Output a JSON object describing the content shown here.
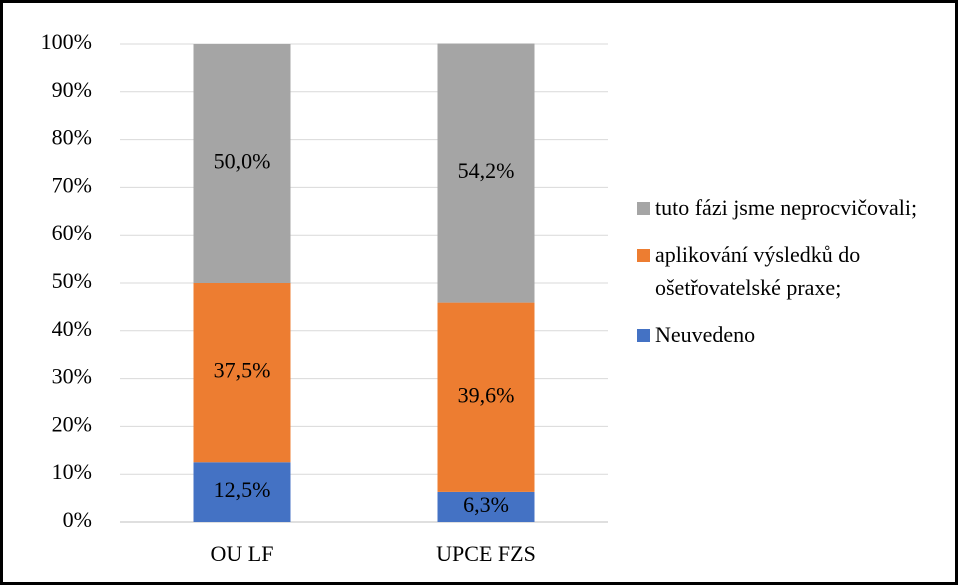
{
  "chart_data": {
    "type": "stacked_bar",
    "categories": [
      "OU LF",
      "UPCE FZS"
    ],
    "series": [
      {
        "name": "Neuvedeno",
        "color": "#4472c4",
        "values": [
          12.5,
          6.3
        ],
        "value_labels": [
          "12,5%",
          "6,3%"
        ]
      },
      {
        "name": "aplikování výsledků do ošetřovatelské praxe;",
        "color": "#ed7d31",
        "values": [
          37.5,
          39.6
        ],
        "value_labels": [
          "37,5%",
          "39,6%"
        ]
      },
      {
        "name": "tuto fázi jsme neprocvičovali;",
        "color": "#a5a5a5",
        "values": [
          50.0,
          54.2
        ],
        "value_labels": [
          "50,0%",
          "54,2%"
        ]
      }
    ],
    "ylim": [
      0,
      100
    ],
    "yticks": [
      {
        "value": 0,
        "label": "0%"
      },
      {
        "value": 10,
        "label": "10%"
      },
      {
        "value": 20,
        "label": "20%"
      },
      {
        "value": 30,
        "label": "30%"
      },
      {
        "value": 40,
        "label": "40%"
      },
      {
        "value": 50,
        "label": "50%"
      },
      {
        "value": 60,
        "label": "60%"
      },
      {
        "value": 70,
        "label": "70%"
      },
      {
        "value": 80,
        "label": "80%"
      },
      {
        "value": 90,
        "label": "90%"
      },
      {
        "value": 100,
        "label": "100%"
      }
    ],
    "grid": true,
    "legend": "right"
  }
}
